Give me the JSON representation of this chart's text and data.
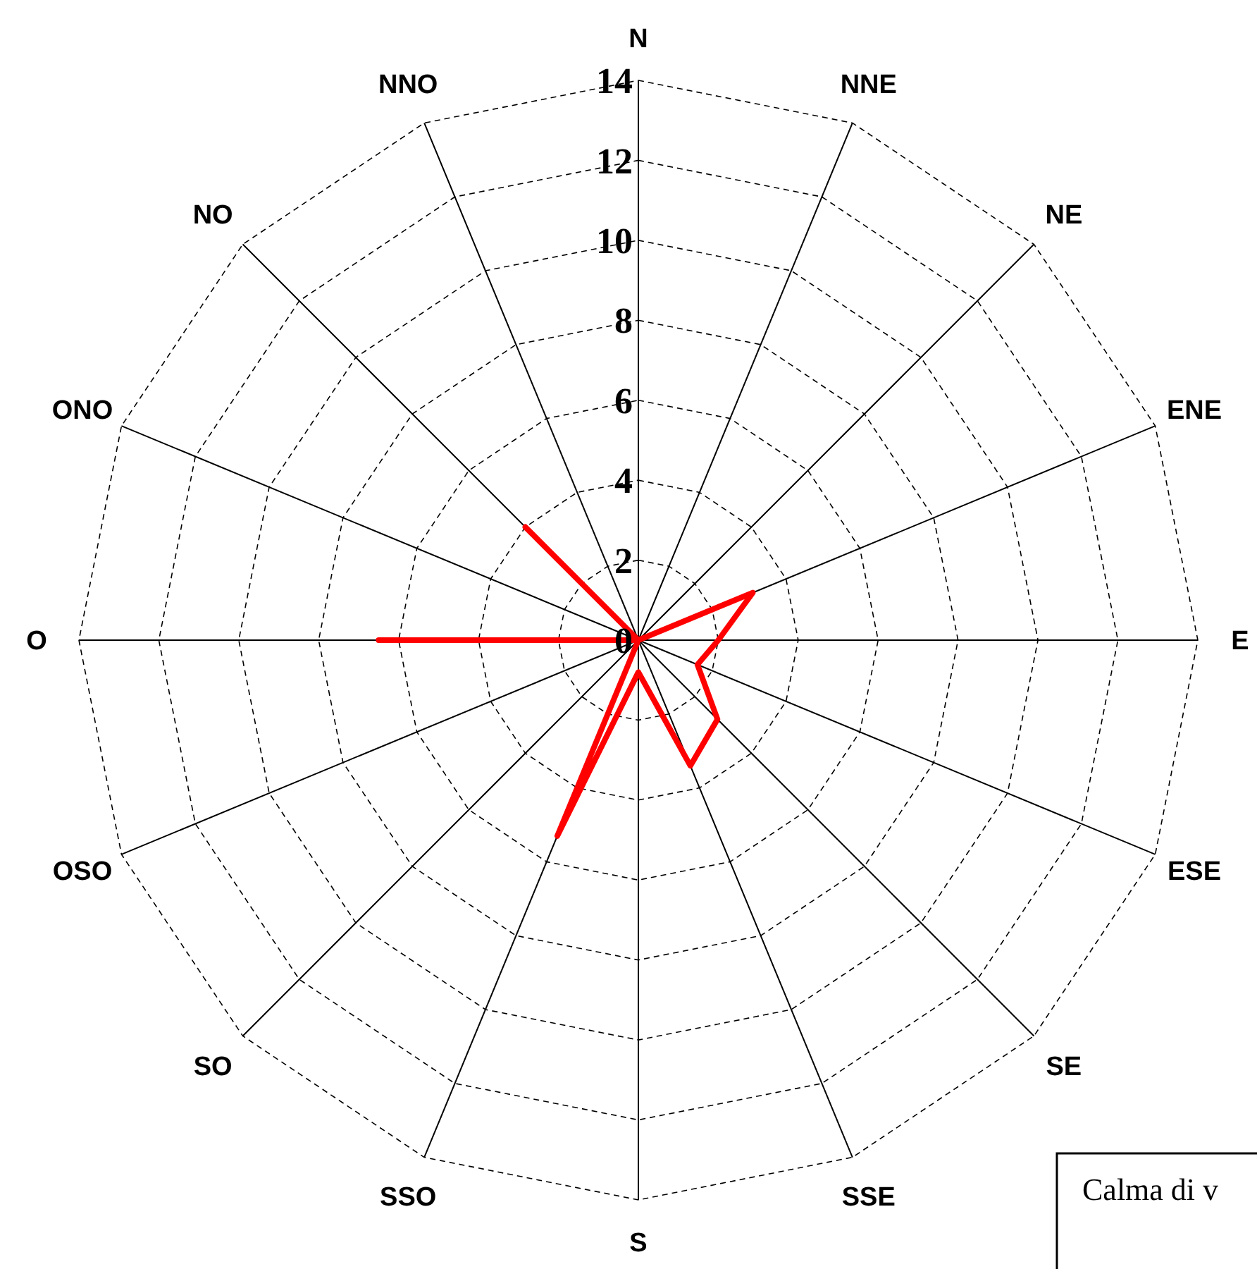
{
  "chart_data": {
    "type": "radar",
    "categories": [
      "N",
      "NNE",
      "NE",
      "ENE",
      "E",
      "ESE",
      "SE",
      "SSE",
      "S",
      "SSO",
      "SO",
      "OSO",
      "O",
      "ONO",
      "NO",
      "NNO"
    ],
    "series": [
      {
        "color": "#ff0000",
        "values": [
          0,
          0,
          0,
          3.1,
          2.0,
          1.6,
          2.8,
          3.4,
          0.8,
          5.3,
          0,
          0,
          6.5,
          0,
          4.0,
          0
        ]
      }
    ],
    "ylim": [
      0,
      14
    ],
    "yticks": [
      0,
      2,
      4,
      6,
      8,
      10,
      12,
      14
    ],
    "grid": true,
    "line_style": "solid",
    "marker": "none",
    "annotations": [
      "Calma di v"
    ]
  }
}
